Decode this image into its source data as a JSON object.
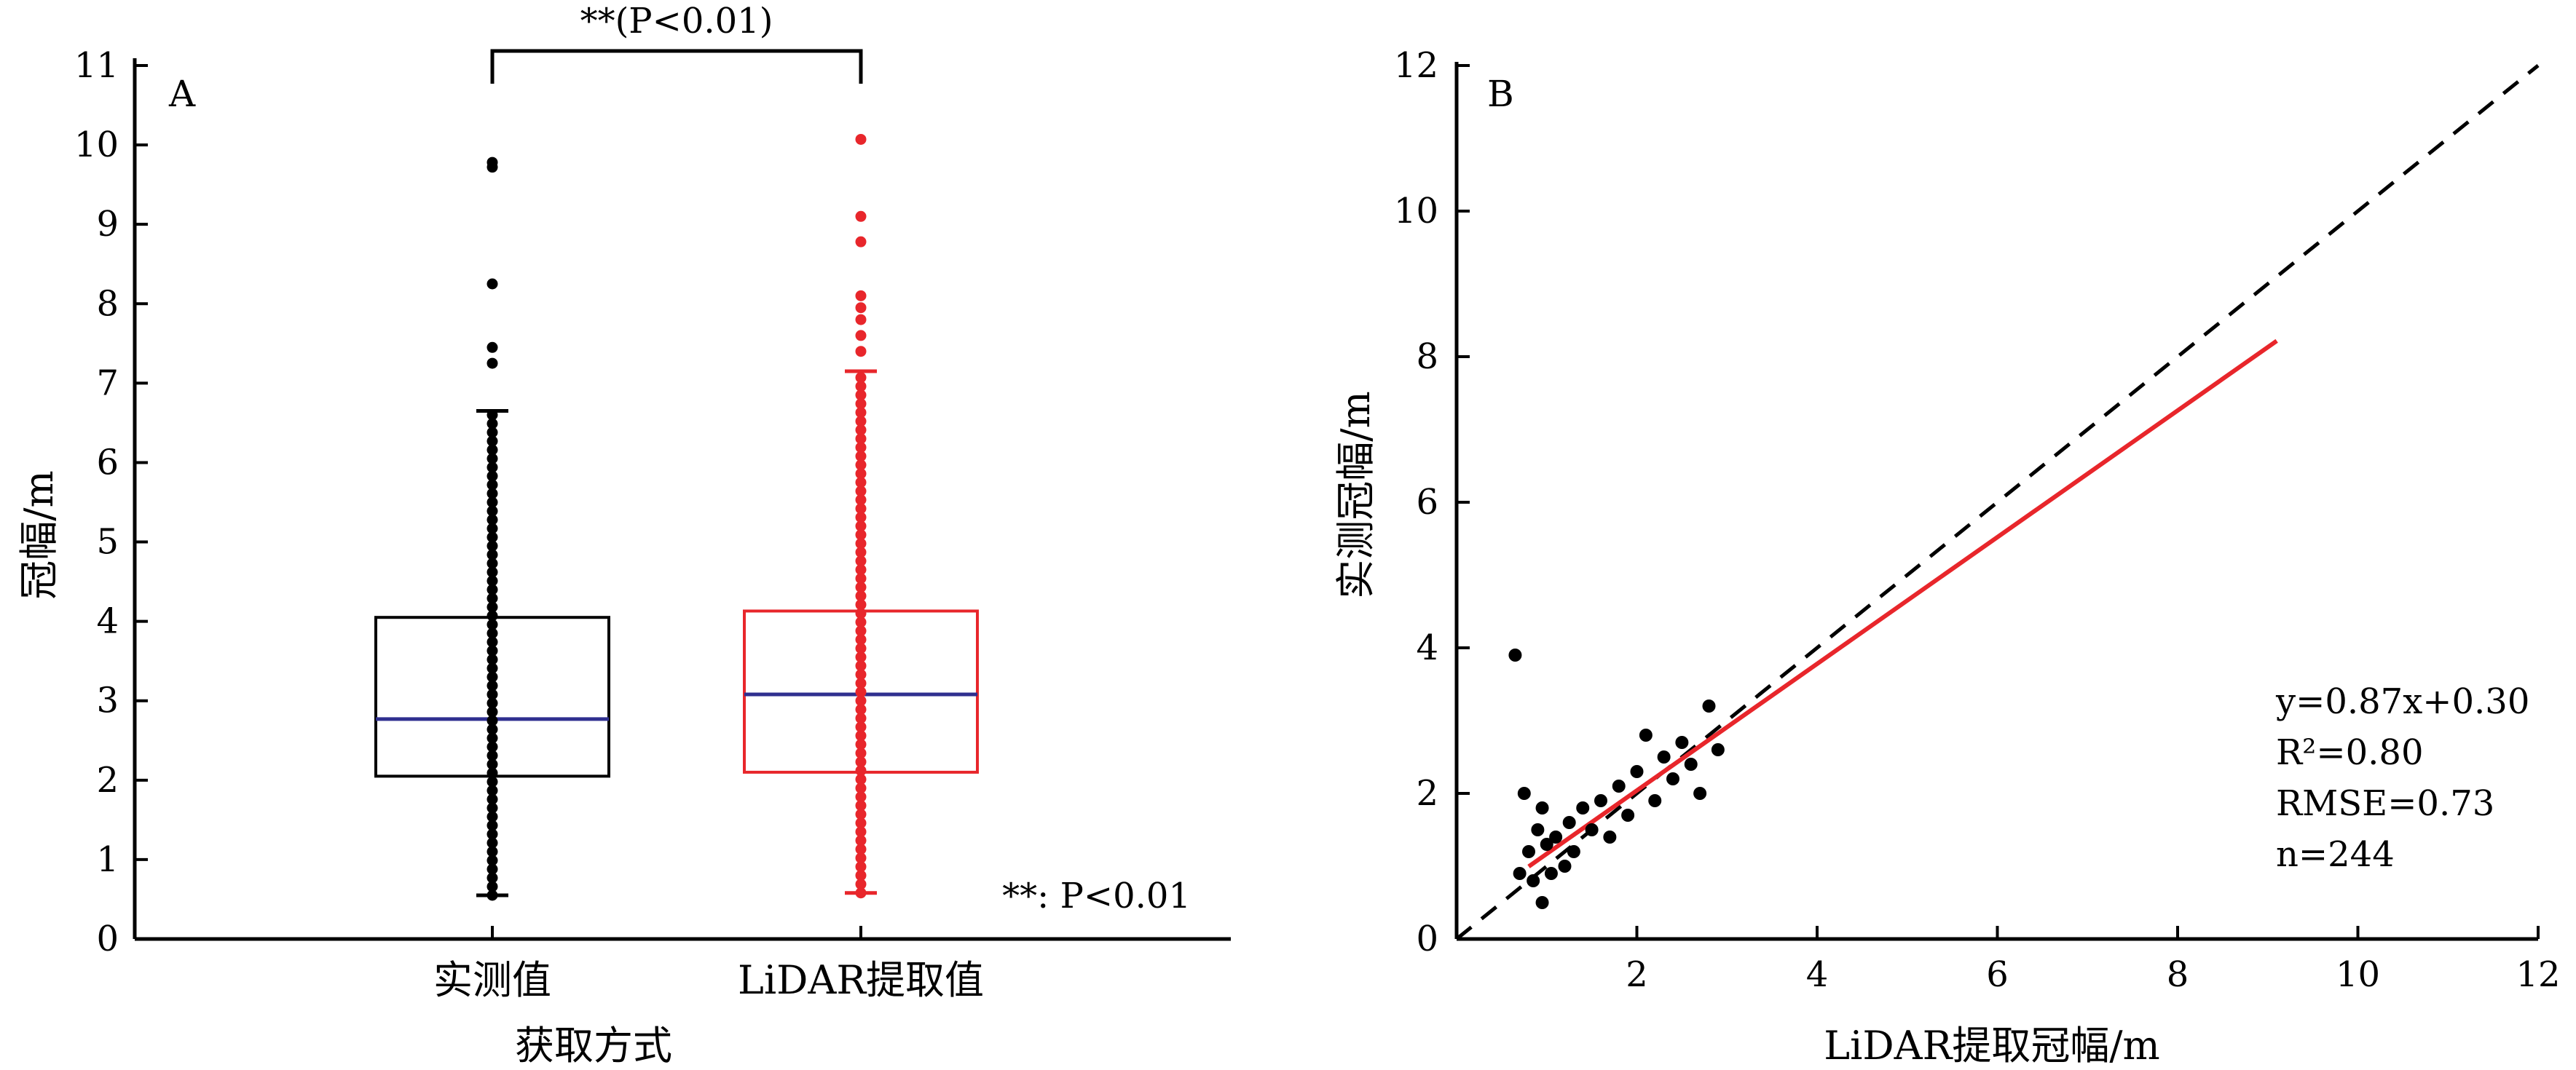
{
  "chart_data": [
    {
      "type": "box",
      "panel_label": "A",
      "xlabel": "获取方式",
      "ylabel": "冠幅/m",
      "ylim": [
        0,
        11
      ],
      "yticks": [
        0,
        1,
        2,
        3,
        4,
        5,
        6,
        7,
        8,
        9,
        10,
        11
      ],
      "categories": [
        "实测值",
        "LiDAR提取值"
      ],
      "boxes": [
        {
          "category": "实测值",
          "color": "#000000",
          "min": 0.55,
          "q1": 2.05,
          "median": 2.77,
          "q3": 4.05,
          "max": 6.65,
          "outliers": [
            7.25,
            7.45,
            8.25,
            9.72,
            9.78
          ]
        },
        {
          "category": "LiDAR提取值",
          "color": "#e8262b",
          "min": 0.58,
          "q1": 2.1,
          "median": 3.08,
          "q3": 4.13,
          "max": 7.15,
          "outliers": [
            7.4,
            7.6,
            7.8,
            7.95,
            8.1,
            8.78,
            9.1,
            10.07
          ]
        }
      ],
      "median_color": "#2f2f8f",
      "significance_bracket": "**(P<0.01)",
      "note": "**: P<0.01"
    },
    {
      "type": "scatter",
      "panel_label": "B",
      "xlabel": "LiDAR提取冠幅/m",
      "ylabel": "实测冠幅/m",
      "xlim": [
        0,
        12
      ],
      "ylim": [
        0,
        12
      ],
      "xticks": [
        2,
        4,
        6,
        8,
        10,
        12
      ],
      "yticks": [
        0,
        2,
        4,
        6,
        8,
        10,
        12
      ],
      "points": {
        "x": [
          0.65,
          0.7,
          0.75,
          0.8,
          0.85,
          0.9,
          0.95,
          0.95,
          1,
          1.05,
          1.1,
          1.2,
          1.25,
          1.3,
          1.4,
          1.5,
          1.6,
          1.7,
          1.8,
          1.9,
          2,
          2.1,
          2.2,
          2.3,
          2.4,
          2.5,
          2.6,
          2.7,
          2.8,
          2.9
        ],
        "y": [
          3.9,
          0.9,
          2,
          1.2,
          0.8,
          1.5,
          0.5,
          1.8,
          1.3,
          0.9,
          1.4,
          1,
          1.6,
          1.2,
          1.8,
          1.5,
          1.9,
          1.4,
          2.1,
          1.7,
          2.3,
          2.8,
          1.9,
          2.5,
          2.2,
          2.7,
          2.4,
          2,
          3.2,
          2.6
        ]
      },
      "fit_line": {
        "slope": 0.87,
        "intercept": 0.3,
        "x_range": [
          0.8,
          9.1
        ],
        "color": "#e8262b"
      },
      "reference_line": {
        "label": "1:1",
        "style": "dashed"
      },
      "stats": [
        "y=0.87x+0.30",
        "R²=0.80",
        "RMSE=0.73",
        "n=244"
      ]
    }
  ]
}
